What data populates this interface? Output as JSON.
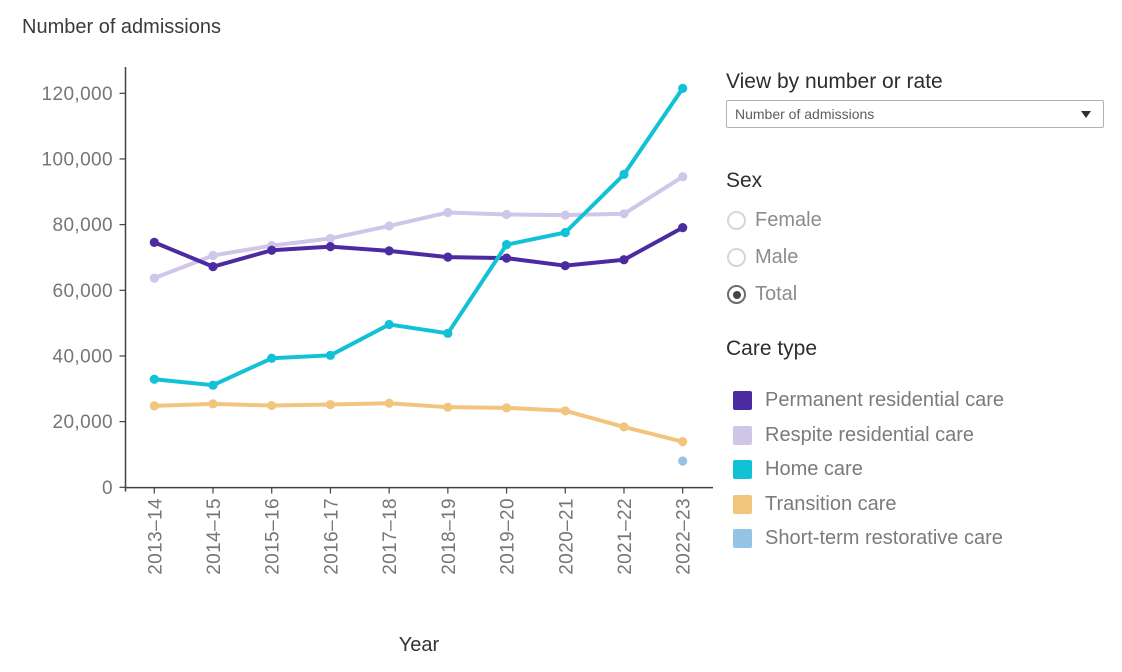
{
  "title": "Number of admissions",
  "controls": {
    "view_by": {
      "label": "View by number or rate",
      "selected": "Number of admissions"
    },
    "sex": {
      "label": "Sex",
      "options": [
        {
          "label": "Female",
          "selected": false
        },
        {
          "label": "Male",
          "selected": false
        },
        {
          "label": "Total",
          "selected": true
        }
      ]
    },
    "care_type": {
      "label": "Care type"
    }
  },
  "chart_data": {
    "type": "line",
    "title": "Number of admissions",
    "xlabel": "Year",
    "ylabel": "",
    "ylim": [
      0,
      120000
    ],
    "grid": false,
    "legend_position": "right",
    "yticks": [
      0,
      20000,
      40000,
      60000,
      80000,
      100000,
      120000
    ],
    "ytick_labels": [
      "0",
      "20,000",
      "40,000",
      "60,000",
      "80,000",
      "100,000",
      "120,000"
    ],
    "categories": [
      "2013–14",
      "2014–15",
      "2015–16",
      "2016–17",
      "2017–18",
      "2018–19",
      "2019–20",
      "2020–21",
      "2021–22",
      "2022–23"
    ],
    "series": [
      {
        "name": "Permanent residential care",
        "color": "#4c2aa0",
        "values": [
          74600,
          67200,
          72200,
          73300,
          72000,
          70100,
          69800,
          67500,
          69300,
          79100
        ]
      },
      {
        "name": "Respite residential care",
        "color": "#cfc6ea",
        "values": [
          63700,
          70600,
          73600,
          75800,
          79600,
          83700,
          83100,
          82900,
          83300,
          94600
        ]
      },
      {
        "name": "Home care",
        "color": "#12c1d5",
        "values": [
          32900,
          31100,
          39300,
          40200,
          49600,
          46900,
          73900,
          77600,
          95300,
          121500
        ]
      },
      {
        "name": "Transition care",
        "color": "#f2c57e",
        "values": [
          24800,
          25400,
          24900,
          25200,
          25600,
          24400,
          24200,
          23300,
          18400,
          13900
        ]
      },
      {
        "name": "Short-term restorative care",
        "color": "#95c3e5",
        "values": [
          null,
          null,
          null,
          null,
          null,
          null,
          null,
          null,
          null,
          8000
        ]
      }
    ]
  }
}
